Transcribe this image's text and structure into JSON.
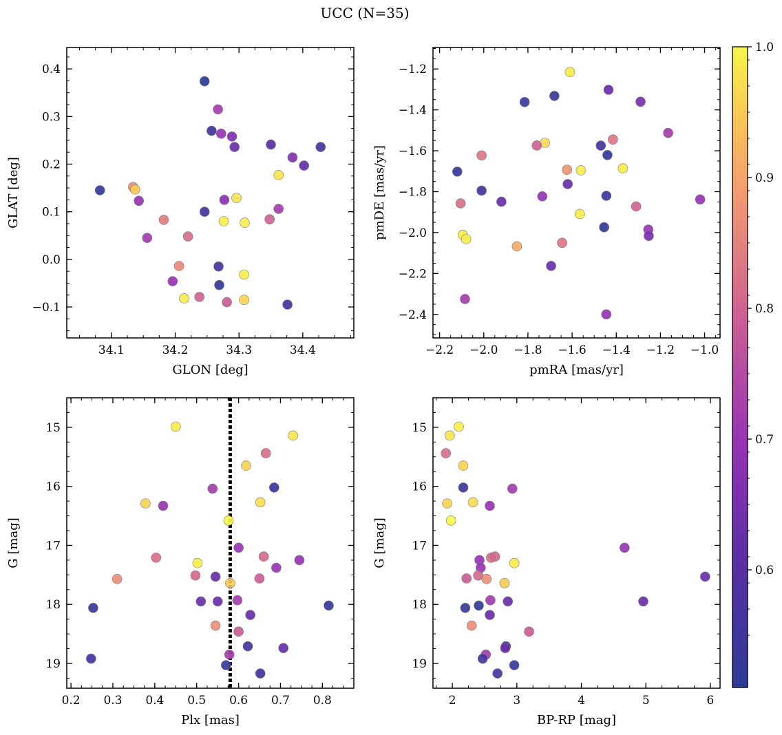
{
  "figure": {
    "title": "UCC (N=35)",
    "colorbar": {
      "min": 0.51,
      "max": 1.0,
      "ticks": [
        0.6,
        0.7,
        0.8,
        0.9,
        1.0
      ],
      "tick_labels": [
        "0.6",
        "0.7",
        "0.8",
        "0.9",
        "1.0"
      ],
      "colormap": "plasma"
    }
  },
  "chart_data": [
    {
      "id": "sky",
      "type": "scatter",
      "xlabel": "GLON [deg]",
      "ylabel": "GLAT [deg]",
      "xlim": [
        34.03,
        34.48
      ],
      "ylim": [
        -0.165,
        0.445
      ],
      "xticks": [
        34.1,
        34.2,
        34.3,
        34.4
      ],
      "xtick_labels": [
        "34.1",
        "34.2",
        "34.3",
        "34.4"
      ],
      "yticks": [
        -0.1,
        0.0,
        0.1,
        0.2,
        0.3,
        0.4
      ],
      "ytick_labels": [
        "−0.1",
        "0.0",
        "0.1",
        "0.2",
        "0.3",
        "0.4"
      ],
      "points": [
        {
          "x": 34.246,
          "y": 0.374,
          "c": 0.51
        },
        {
          "x": 34.267,
          "y": 0.315,
          "c": 0.72
        },
        {
          "x": 34.257,
          "y": 0.27,
          "c": 0.55
        },
        {
          "x": 34.272,
          "y": 0.264,
          "c": 0.7
        },
        {
          "x": 34.289,
          "y": 0.258,
          "c": 0.66
        },
        {
          "x": 34.293,
          "y": 0.236,
          "c": 0.63
        },
        {
          "x": 34.35,
          "y": 0.241,
          "c": 0.6
        },
        {
          "x": 34.428,
          "y": 0.236,
          "c": 0.56
        },
        {
          "x": 34.384,
          "y": 0.214,
          "c": 0.67
        },
        {
          "x": 34.402,
          "y": 0.197,
          "c": 0.62
        },
        {
          "x": 34.362,
          "y": 0.177,
          "c": 0.98
        },
        {
          "x": 34.082,
          "y": 0.145,
          "c": 0.53
        },
        {
          "x": 34.134,
          "y": 0.152,
          "c": 0.87
        },
        {
          "x": 34.137,
          "y": 0.147,
          "c": 0.95
        },
        {
          "x": 34.143,
          "y": 0.123,
          "c": 0.7
        },
        {
          "x": 34.296,
          "y": 0.129,
          "c": 0.98
        },
        {
          "x": 34.277,
          "y": 0.125,
          "c": 0.68
        },
        {
          "x": 34.362,
          "y": 0.106,
          "c": 0.72
        },
        {
          "x": 34.246,
          "y": 0.1,
          "c": 0.56
        },
        {
          "x": 34.182,
          "y": 0.083,
          "c": 0.84
        },
        {
          "x": 34.276,
          "y": 0.08,
          "c": 0.99
        },
        {
          "x": 34.309,
          "y": 0.077,
          "c": 0.99
        },
        {
          "x": 34.348,
          "y": 0.084,
          "c": 0.8
        },
        {
          "x": 34.156,
          "y": 0.045,
          "c": 0.72
        },
        {
          "x": 34.22,
          "y": 0.048,
          "c": 0.82
        },
        {
          "x": 34.206,
          "y": -0.014,
          "c": 0.86
        },
        {
          "x": 34.268,
          "y": -0.015,
          "c": 0.57
        },
        {
          "x": 34.308,
          "y": -0.032,
          "c": 0.99
        },
        {
          "x": 34.196,
          "y": -0.046,
          "c": 0.7
        },
        {
          "x": 34.269,
          "y": -0.054,
          "c": 0.53
        },
        {
          "x": 34.214,
          "y": -0.082,
          "c": 0.99
        },
        {
          "x": 34.238,
          "y": -0.079,
          "c": 0.8
        },
        {
          "x": 34.281,
          "y": -0.09,
          "c": 0.79
        },
        {
          "x": 34.308,
          "y": -0.085,
          "c": 0.96
        },
        {
          "x": 34.376,
          "y": -0.095,
          "c": 0.57
        }
      ]
    },
    {
      "id": "pm",
      "type": "scatter",
      "xlabel": "pmRA [mas/yr]",
      "ylabel": "pmDE [mas/yr]",
      "xlim": [
        -2.23,
        -0.93
      ],
      "ylim": [
        -2.515,
        -1.095
      ],
      "xticks": [
        -2.2,
        -2.0,
        -1.8,
        -1.6,
        -1.4,
        -1.2,
        -1.0
      ],
      "xtick_labels": [
        "−2.2",
        "−2.0",
        "−1.8",
        "−1.6",
        "−1.4",
        "−1.2",
        "−1.0"
      ],
      "yticks": [
        -2.4,
        -2.2,
        -2.0,
        -1.8,
        -1.6,
        -1.4,
        -1.2
      ],
      "ytick_labels": [
        "−2.4",
        "−2.2",
        "−2.0",
        "−1.8",
        "−1.6",
        "−1.4",
        "−1.2"
      ],
      "points": [
        {
          "x": -1.61,
          "y": -1.215,
          "c": 0.99
        },
        {
          "x": -1.435,
          "y": -1.302,
          "c": 0.63
        },
        {
          "x": -1.68,
          "y": -1.332,
          "c": 0.53
        },
        {
          "x": -1.815,
          "y": -1.362,
          "c": 0.53
        },
        {
          "x": -1.29,
          "y": -1.36,
          "c": 0.65
        },
        {
          "x": -1.165,
          "y": -1.513,
          "c": 0.72
        },
        {
          "x": -1.415,
          "y": -1.545,
          "c": 0.83
        },
        {
          "x": -1.723,
          "y": -1.561,
          "c": 0.97
        },
        {
          "x": -1.76,
          "y": -1.574,
          "c": 0.8
        },
        {
          "x": -1.47,
          "y": -1.575,
          "c": 0.56
        },
        {
          "x": -2.01,
          "y": -1.623,
          "c": 0.83
        },
        {
          "x": -1.44,
          "y": -1.621,
          "c": 0.52
        },
        {
          "x": -2.12,
          "y": -1.702,
          "c": 0.53
        },
        {
          "x": -1.623,
          "y": -1.693,
          "c": 0.88
        },
        {
          "x": -1.56,
          "y": -1.696,
          "c": 0.99
        },
        {
          "x": -1.37,
          "y": -1.686,
          "c": 0.99
        },
        {
          "x": -2.01,
          "y": -1.795,
          "c": 0.56
        },
        {
          "x": -1.62,
          "y": -1.763,
          "c": 0.63
        },
        {
          "x": -1.735,
          "y": -1.823,
          "c": 0.7
        },
        {
          "x": -1.445,
          "y": -1.82,
          "c": 0.53
        },
        {
          "x": -1.92,
          "y": -1.849,
          "c": 0.63
        },
        {
          "x": -2.105,
          "y": -1.857,
          "c": 0.82
        },
        {
          "x": -1.31,
          "y": -1.872,
          "c": 0.8
        },
        {
          "x": -1.02,
          "y": -1.838,
          "c": 0.7
        },
        {
          "x": -1.565,
          "y": -1.909,
          "c": 0.99
        },
        {
          "x": -1.455,
          "y": -1.974,
          "c": 0.52
        },
        {
          "x": -1.255,
          "y": -1.985,
          "c": 0.7
        },
        {
          "x": -1.253,
          "y": -2.016,
          "c": 0.65
        },
        {
          "x": -2.095,
          "y": -2.011,
          "c": 0.99
        },
        {
          "x": -2.08,
          "y": -2.032,
          "c": 0.99
        },
        {
          "x": -1.645,
          "y": -2.05,
          "c": 0.83
        },
        {
          "x": -1.85,
          "y": -2.067,
          "c": 0.91
        },
        {
          "x": -1.695,
          "y": -2.163,
          "c": 0.63
        },
        {
          "x": -2.085,
          "y": -2.325,
          "c": 0.72
        },
        {
          "x": -1.445,
          "y": -2.4,
          "c": 0.7
        }
      ]
    },
    {
      "id": "plx",
      "type": "scatter",
      "xlabel": "Plx [mas]",
      "ylabel": "G [mag]",
      "xlim": [
        0.19,
        0.875
      ],
      "ylim": [
        19.42,
        14.5
      ],
      "y_inverted": true,
      "vline": 0.58,
      "xticks": [
        0.2,
        0.3,
        0.4,
        0.5,
        0.6,
        0.7,
        0.8
      ],
      "xtick_labels": [
        "0.2",
        "0.3",
        "0.4",
        "0.5",
        "0.6",
        "0.7",
        "0.8"
      ],
      "yticks": [
        15,
        16,
        17,
        18,
        19
      ],
      "ytick_labels": [
        "15",
        "16",
        "17",
        "18",
        "19"
      ],
      "points": [
        {
          "x": 0.45,
          "y": 14.99,
          "c": 0.99
        },
        {
          "x": 0.73,
          "y": 15.14,
          "c": 0.98
        },
        {
          "x": 0.665,
          "y": 15.44,
          "c": 0.82
        },
        {
          "x": 0.618,
          "y": 15.65,
          "c": 0.96
        },
        {
          "x": 0.538,
          "y": 16.04,
          "c": 0.72
        },
        {
          "x": 0.685,
          "y": 16.02,
          "c": 0.53
        },
        {
          "x": 0.378,
          "y": 16.29,
          "c": 0.96
        },
        {
          "x": 0.42,
          "y": 16.33,
          "c": 0.7
        },
        {
          "x": 0.652,
          "y": 16.27,
          "c": 0.97
        },
        {
          "x": 0.576,
          "y": 16.58,
          "c": 1.0
        },
        {
          "x": 0.6,
          "y": 17.04,
          "c": 0.7
        },
        {
          "x": 0.403,
          "y": 17.21,
          "c": 0.82
        },
        {
          "x": 0.66,
          "y": 17.19,
          "c": 0.81
        },
        {
          "x": 0.745,
          "y": 17.25,
          "c": 0.7
        },
        {
          "x": 0.502,
          "y": 17.3,
          "c": 0.99
        },
        {
          "x": 0.69,
          "y": 17.38,
          "c": 0.7
        },
        {
          "x": 0.31,
          "y": 17.57,
          "c": 0.87
        },
        {
          "x": 0.497,
          "y": 17.51,
          "c": 0.81
        },
        {
          "x": 0.545,
          "y": 17.53,
          "c": 0.63
        },
        {
          "x": 0.65,
          "y": 17.56,
          "c": 0.79
        },
        {
          "x": 0.58,
          "y": 17.64,
          "c": 0.95
        },
        {
          "x": 0.51,
          "y": 17.95,
          "c": 0.63
        },
        {
          "x": 0.55,
          "y": 17.95,
          "c": 0.63
        },
        {
          "x": 0.597,
          "y": 17.93,
          "c": 0.72
        },
        {
          "x": 0.253,
          "y": 18.06,
          "c": 0.53
        },
        {
          "x": 0.815,
          "y": 18.02,
          "c": 0.53
        },
        {
          "x": 0.628,
          "y": 18.18,
          "c": 0.63
        },
        {
          "x": 0.545,
          "y": 18.36,
          "c": 0.87
        },
        {
          "x": 0.6,
          "y": 18.46,
          "c": 0.79
        },
        {
          "x": 0.622,
          "y": 18.71,
          "c": 0.56
        },
        {
          "x": 0.707,
          "y": 18.74,
          "c": 0.63
        },
        {
          "x": 0.578,
          "y": 18.85,
          "c": 0.72
        },
        {
          "x": 0.248,
          "y": 18.92,
          "c": 0.56
        },
        {
          "x": 0.57,
          "y": 19.03,
          "c": 0.53
        },
        {
          "x": 0.652,
          "y": 19.17,
          "c": 0.56
        }
      ]
    },
    {
      "id": "cmd",
      "type": "scatter",
      "xlabel": "BP-RP [mag]",
      "ylabel": "G [mag]",
      "xlim": [
        1.7,
        6.15
      ],
      "ylim": [
        19.42,
        14.5
      ],
      "y_inverted": true,
      "xticks": [
        2,
        3,
        4,
        5,
        6
      ],
      "xtick_labels": [
        "2",
        "3",
        "4",
        "5",
        "6"
      ],
      "yticks": [
        15,
        16,
        17,
        18,
        19
      ],
      "ytick_labels": [
        "15",
        "16",
        "17",
        "18",
        "19"
      ],
      "points": [
        {
          "x": 2.1,
          "y": 14.99,
          "c": 0.99
        },
        {
          "x": 1.96,
          "y": 15.14,
          "c": 0.98
        },
        {
          "x": 1.9,
          "y": 15.44,
          "c": 0.82
        },
        {
          "x": 2.17,
          "y": 15.65,
          "c": 0.96
        },
        {
          "x": 2.17,
          "y": 16.02,
          "c": 0.53
        },
        {
          "x": 2.93,
          "y": 16.04,
          "c": 0.72
        },
        {
          "x": 1.92,
          "y": 16.29,
          "c": 0.96
        },
        {
          "x": 2.32,
          "y": 16.27,
          "c": 0.97
        },
        {
          "x": 2.58,
          "y": 16.33,
          "c": 0.7
        },
        {
          "x": 1.98,
          "y": 16.58,
          "c": 1.0
        },
        {
          "x": 4.67,
          "y": 17.04,
          "c": 0.7
        },
        {
          "x": 2.6,
          "y": 17.21,
          "c": 0.82
        },
        {
          "x": 2.66,
          "y": 17.19,
          "c": 0.81
        },
        {
          "x": 2.42,
          "y": 17.25,
          "c": 0.7
        },
        {
          "x": 2.96,
          "y": 17.3,
          "c": 0.99
        },
        {
          "x": 2.44,
          "y": 17.38,
          "c": 0.7
        },
        {
          "x": 2.4,
          "y": 17.51,
          "c": 0.81
        },
        {
          "x": 2.22,
          "y": 17.56,
          "c": 0.79
        },
        {
          "x": 2.53,
          "y": 17.57,
          "c": 0.87
        },
        {
          "x": 2.81,
          "y": 17.64,
          "c": 0.95
        },
        {
          "x": 5.92,
          "y": 17.53,
          "c": 0.63
        },
        {
          "x": 2.59,
          "y": 17.93,
          "c": 0.72
        },
        {
          "x": 2.86,
          "y": 17.95,
          "c": 0.63
        },
        {
          "x": 4.96,
          "y": 17.95,
          "c": 0.63
        },
        {
          "x": 2.41,
          "y": 18.02,
          "c": 0.53
        },
        {
          "x": 2.2,
          "y": 18.06,
          "c": 0.53
        },
        {
          "x": 2.58,
          "y": 18.18,
          "c": 0.63
        },
        {
          "x": 2.3,
          "y": 18.36,
          "c": 0.87
        },
        {
          "x": 3.19,
          "y": 18.46,
          "c": 0.79
        },
        {
          "x": 2.83,
          "y": 18.71,
          "c": 0.56
        },
        {
          "x": 2.82,
          "y": 18.74,
          "c": 0.63
        },
        {
          "x": 2.52,
          "y": 18.85,
          "c": 0.72
        },
        {
          "x": 2.47,
          "y": 18.92,
          "c": 0.56
        },
        {
          "x": 2.96,
          "y": 19.03,
          "c": 0.53
        },
        {
          "x": 2.7,
          "y": 19.17,
          "c": 0.56
        }
      ]
    }
  ]
}
